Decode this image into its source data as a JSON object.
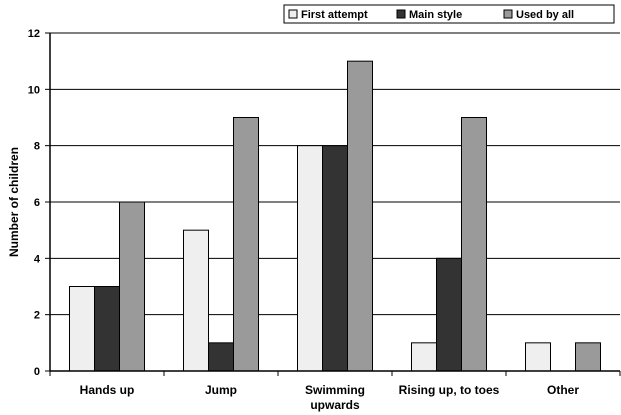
{
  "chart_data": {
    "type": "bar",
    "categories": [
      [
        "Hands up"
      ],
      [
        "Jump"
      ],
      [
        "Swimming",
        "upwards"
      ],
      [
        "Rising up, to toes"
      ],
      [
        "Other"
      ]
    ],
    "series": [
      {
        "name": "First attempt",
        "values": [
          3,
          5,
          8,
          1,
          1
        ],
        "color": "#efefef"
      },
      {
        "name": "Main style",
        "values": [
          3,
          1,
          8,
          4,
          0
        ],
        "color": "#333333"
      },
      {
        "name": "Used by all",
        "values": [
          6,
          9,
          11,
          9,
          1
        ],
        "color": "#9a9a9a"
      }
    ],
    "xlabel": "",
    "ylabel": "Number of children",
    "ylim": [
      0,
      12
    ],
    "yticks": [
      0,
      2,
      4,
      6,
      8,
      10,
      12
    ],
    "grid": true,
    "legend_position": "top-right"
  }
}
